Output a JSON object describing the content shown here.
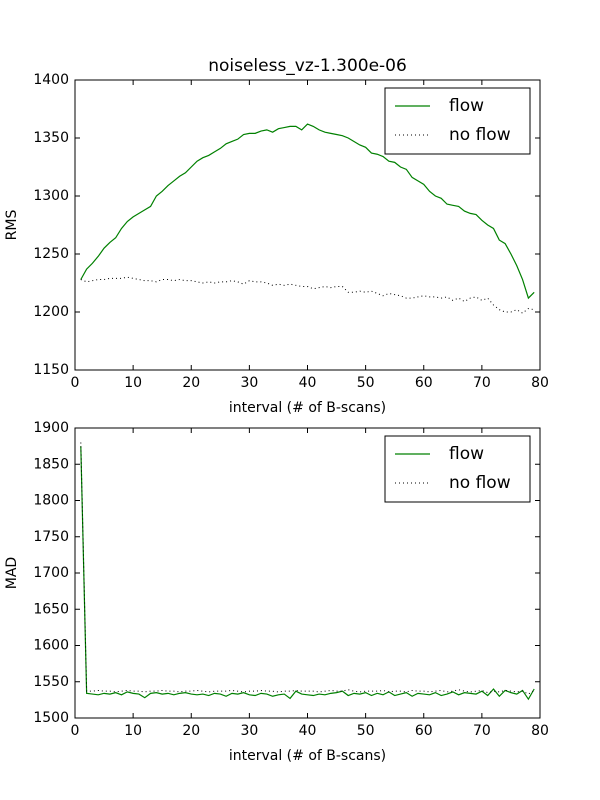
{
  "chart_data": [
    {
      "type": "line",
      "title": "noiseless_vz-1.300e-06",
      "xlabel": "interval (# of B-scans)",
      "ylabel": "RMS",
      "x": [
        1,
        2,
        3,
        4,
        5,
        6,
        7,
        8,
        9,
        10,
        11,
        12,
        13,
        14,
        15,
        16,
        17,
        18,
        19,
        20,
        21,
        22,
        23,
        24,
        25,
        26,
        27,
        28,
        29,
        30,
        31,
        32,
        33,
        34,
        35,
        36,
        37,
        38,
        39,
        40,
        41,
        42,
        43,
        44,
        45,
        46,
        47,
        48,
        49,
        50,
        51,
        52,
        53,
        54,
        55,
        56,
        57,
        58,
        59,
        60,
        61,
        62,
        63,
        64,
        65,
        66,
        67,
        68,
        69,
        70,
        71,
        72,
        73,
        74,
        75,
        76,
        77,
        78,
        79
      ],
      "series": [
        {
          "name": "flow",
          "color": "#008000",
          "style": "solid",
          "values": [
            1228,
            1237,
            1242,
            1248,
            1255,
            1260,
            1264,
            1272,
            1278,
            1282,
            1285,
            1288,
            1291,
            1300,
            1304,
            1309,
            1313,
            1317,
            1320,
            1325,
            1330,
            1333,
            1335,
            1338,
            1341,
            1345,
            1347,
            1349,
            1353,
            1354,
            1354,
            1356,
            1357,
            1355,
            1358,
            1359,
            1360,
            1360,
            1357,
            1362,
            1360,
            1357,
            1355,
            1354,
            1353,
            1352,
            1350,
            1347,
            1344,
            1342,
            1337,
            1336,
            1334,
            1330,
            1329,
            1325,
            1323,
            1316,
            1313,
            1310,
            1304,
            1300,
            1298,
            1293,
            1292,
            1291,
            1287,
            1285,
            1284,
            1279,
            1275,
            1272,
            1262,
            1259,
            1250,
            1240,
            1228,
            1212,
            1217
          ]
        },
        {
          "name": "no flow",
          "color": "#000000",
          "style": "dotted",
          "values": [
            1228,
            1226,
            1227,
            1228,
            1228,
            1229,
            1229,
            1229,
            1230,
            1229,
            1228,
            1227,
            1227,
            1226,
            1228,
            1228,
            1227,
            1228,
            1227,
            1227,
            1226,
            1225,
            1226,
            1225,
            1226,
            1226,
            1227,
            1226,
            1224,
            1227,
            1226,
            1226,
            1225,
            1223,
            1224,
            1223,
            1224,
            1223,
            1222,
            1222,
            1220,
            1221,
            1222,
            1221,
            1222,
            1222,
            1217,
            1217,
            1218,
            1217,
            1218,
            1216,
            1214,
            1216,
            1215,
            1214,
            1212,
            1212,
            1213,
            1214,
            1213,
            1213,
            1212,
            1213,
            1210,
            1212,
            1209,
            1212,
            1213,
            1210,
            1212,
            1206,
            1202,
            1200,
            1200,
            1202,
            1199,
            1203,
            1202
          ]
        }
      ],
      "xlim": [
        0,
        80
      ],
      "xticks": [
        0,
        10,
        20,
        30,
        40,
        50,
        60,
        70,
        80
      ],
      "ylim": [
        1150,
        1400
      ],
      "yticks": [
        1150,
        1200,
        1250,
        1300,
        1350,
        1400
      ],
      "legend": "upper right"
    },
    {
      "type": "line",
      "xlabel": "interval (# of B-scans)",
      "ylabel": "MAD",
      "x": [
        1,
        2,
        3,
        4,
        5,
        6,
        7,
        8,
        9,
        10,
        11,
        12,
        13,
        14,
        15,
        16,
        17,
        18,
        19,
        20,
        21,
        22,
        23,
        24,
        25,
        26,
        27,
        28,
        29,
        30,
        31,
        32,
        33,
        34,
        35,
        36,
        37,
        38,
        39,
        40,
        41,
        42,
        43,
        44,
        45,
        46,
        47,
        48,
        49,
        50,
        51,
        52,
        53,
        54,
        55,
        56,
        57,
        58,
        59,
        60,
        61,
        62,
        63,
        64,
        65,
        66,
        67,
        68,
        69,
        70,
        71,
        72,
        73,
        74,
        75,
        76,
        77,
        78,
        79
      ],
      "series": [
        {
          "name": "flow",
          "color": "#008000",
          "style": "solid",
          "values": [
            1875,
            1534,
            1533,
            1532,
            1534,
            1533,
            1535,
            1532,
            1536,
            1534,
            1533,
            1528,
            1534,
            1535,
            1533,
            1534,
            1532,
            1534,
            1535,
            1533,
            1532,
            1533,
            1531,
            1534,
            1533,
            1530,
            1534,
            1533,
            1535,
            1532,
            1531,
            1534,
            1533,
            1530,
            1532,
            1533,
            1527,
            1537,
            1533,
            1532,
            1531,
            1533,
            1532,
            1534,
            1535,
            1537,
            1531,
            1534,
            1533,
            1535,
            1531,
            1534,
            1532,
            1536,
            1531,
            1533,
            1535,
            1530,
            1534,
            1533,
            1532,
            1535,
            1531,
            1533,
            1536,
            1532,
            1535,
            1534,
            1533,
            1537,
            1531,
            1540,
            1530,
            1538,
            1535,
            1533,
            1538,
            1526,
            1540
          ]
        },
        {
          "name": "no flow",
          "color": "#000000",
          "style": "dotted",
          "values": [
            1880,
            1537,
            1537,
            1538,
            1537,
            1537,
            1536,
            1537,
            1538,
            1537,
            1537,
            1536,
            1537,
            1537,
            1538,
            1537,
            1537,
            1536,
            1537,
            1537,
            1538,
            1537,
            1536,
            1537,
            1537,
            1537,
            1538,
            1537,
            1536,
            1537,
            1537,
            1538,
            1537,
            1537,
            1536,
            1537,
            1537,
            1538,
            1537,
            1537,
            1537,
            1536,
            1537,
            1538,
            1537,
            1537,
            1539,
            1537,
            1536,
            1537,
            1537,
            1537,
            1538,
            1536,
            1537,
            1537,
            1536,
            1538,
            1537,
            1537,
            1536,
            1537,
            1538,
            1536,
            1537,
            1539,
            1537,
            1536,
            1537,
            1538,
            1535,
            1537,
            1536,
            1538,
            1537,
            1536,
            1537,
            1533,
            1538
          ]
        }
      ],
      "xlim": [
        0,
        80
      ],
      "xticks": [
        0,
        10,
        20,
        30,
        40,
        50,
        60,
        70,
        80
      ],
      "ylim": [
        1500,
        1900
      ],
      "yticks": [
        1500,
        1550,
        1600,
        1650,
        1700,
        1750,
        1800,
        1850,
        1900
      ],
      "legend": "upper right"
    }
  ]
}
